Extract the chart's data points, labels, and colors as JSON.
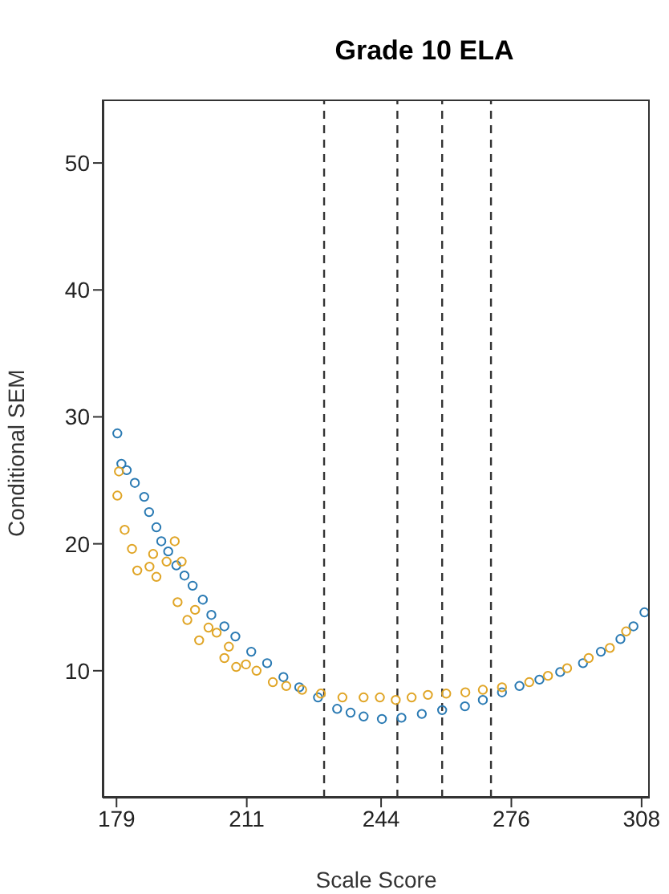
{
  "chart_data": {
    "type": "scatter",
    "title": "Grade 10 ELA",
    "xlabel": "Scale Score",
    "ylabel": "Conditional SEM",
    "xlim": [
      175.6,
      310
    ],
    "xticks": [
      179,
      211,
      244,
      276,
      308
    ],
    "ylim": [
      0,
      55
    ],
    "yticks": [
      10,
      20,
      30,
      40,
      50
    ],
    "grid": false,
    "legend": false,
    "marker": "circle",
    "ref_lines": [
      {
        "axis": "x",
        "value": 230,
        "color": "#333333",
        "line_style": "dashed"
      },
      {
        "axis": "x",
        "value": 248,
        "color": "#333333",
        "line_style": "dashed"
      },
      {
        "axis": "x",
        "value": 259,
        "color": "#333333",
        "line_style": "dashed"
      },
      {
        "axis": "x",
        "value": 271,
        "color": "#333333",
        "line_style": "dashed"
      }
    ],
    "series": [
      {
        "color": "#2a7ab3",
        "x": [
          179.2,
          180.2,
          181.5,
          183.5,
          185.8,
          187,
          188.8,
          190,
          191.7,
          193.7,
          195.7,
          197.7,
          200.2,
          202.3,
          205.5,
          208.2,
          212.1,
          216,
          220,
          223.9,
          228.5,
          233.2,
          236.5,
          239.7,
          244.2,
          249,
          254,
          259,
          264.6,
          269,
          273.7,
          278,
          282.9,
          288,
          293.6,
          298,
          302.8,
          306,
          308.7
        ],
        "values": [
          28.7,
          26.3,
          25.8,
          24.8,
          23.7,
          22.5,
          21.3,
          20.2,
          19.4,
          18.3,
          17.5,
          16.7,
          15.6,
          14.4,
          13.5,
          12.7,
          11.5,
          10.6,
          9.5,
          8.7,
          7.9,
          7.0,
          6.7,
          6.4,
          6.2,
          6.3,
          6.6,
          6.9,
          7.2,
          7.7,
          8.3,
          8.8,
          9.3,
          9.9,
          10.6,
          11.5,
          12.5,
          13.5,
          14.6
        ]
      },
      {
        "color": "#e0a526",
        "x": [
          179.2,
          179.6,
          181,
          182.8,
          184.1,
          187.1,
          188,
          188.8,
          191.3,
          193.3,
          194,
          195,
          196.4,
          198.3,
          199.3,
          201.6,
          203.6,
          205.5,
          206.6,
          208.4,
          210.8,
          213.4,
          217.4,
          220.7,
          224.6,
          229.2,
          234.5,
          239.7,
          243.7,
          247.6,
          251.5,
          255.5,
          260,
          264.7,
          269,
          273.7,
          280.4,
          285,
          289.7,
          295,
          300.2,
          304.2
        ],
        "values": [
          23.8,
          25.7,
          21.1,
          19.6,
          17.9,
          18.2,
          19.2,
          17.4,
          18.6,
          20.2,
          15.4,
          18.6,
          14.0,
          14.8,
          12.4,
          13.4,
          13.0,
          11.0,
          11.9,
          10.3,
          10.5,
          10.0,
          9.1,
          8.8,
          8.5,
          8.2,
          7.9,
          7.9,
          7.9,
          7.7,
          7.9,
          8.1,
          8.2,
          8.3,
          8.5,
          8.7,
          9.1,
          9.6,
          10.2,
          11.0,
          11.8,
          13.1
        ]
      }
    ]
  }
}
